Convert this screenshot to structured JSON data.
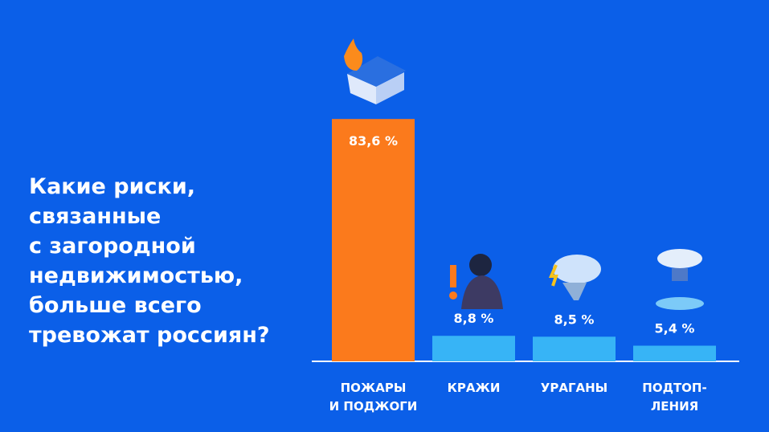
{
  "chart_data": {
    "type": "bar",
    "title": "Какие риски,\nсвязанные\nс загородной\nнедвижимостью,\nбольше всего\nтревожат россиян?",
    "categories": [
      "ПОЖАРЫ\nИ ПОДЖОГИ",
      "КРАЖИ",
      "УРАГАНЫ",
      "ПОДТОП-\nЛЕНИЯ"
    ],
    "values": [
      83.6,
      8.8,
      8.5,
      5.4
    ],
    "value_labels": [
      "83,6 %",
      "8,8 %",
      "8,5 %",
      "5,4 %"
    ],
    "colors": [
      "#fb7a1c",
      "#37b4f6",
      "#37b4f6",
      "#37b4f6"
    ]
  }
}
